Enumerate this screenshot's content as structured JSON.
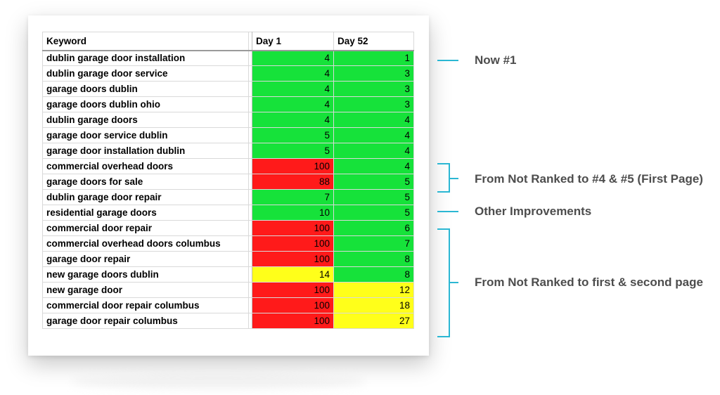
{
  "table": {
    "headers": [
      "Keyword",
      "Day 1",
      "Day 52"
    ],
    "rows": [
      {
        "keyword": "dublin garage door installation",
        "day1": "4",
        "day52": "1",
        "c1": "green",
        "c2": "green"
      },
      {
        "keyword": "dublin garage door service",
        "day1": "4",
        "day52": "3",
        "c1": "green",
        "c2": "green"
      },
      {
        "keyword": "garage doors dublin",
        "day1": "4",
        "day52": "3",
        "c1": "green",
        "c2": "green"
      },
      {
        "keyword": "garage doors dublin ohio",
        "day1": "4",
        "day52": "3",
        "c1": "green",
        "c2": "green"
      },
      {
        "keyword": "dublin garage doors",
        "day1": "4",
        "day52": "4",
        "c1": "green",
        "c2": "green"
      },
      {
        "keyword": "garage door service dublin",
        "day1": "5",
        "day52": "4",
        "c1": "green",
        "c2": "green"
      },
      {
        "keyword": "garage door installation  dublin",
        "day1": "5",
        "day52": "4",
        "c1": "green",
        "c2": "green"
      },
      {
        "keyword": "commercial overhead doors",
        "day1": "100",
        "day52": "4",
        "c1": "red",
        "c2": "green"
      },
      {
        "keyword": "garage doors for sale",
        "day1": "88",
        "day52": "5",
        "c1": "red",
        "c2": "green"
      },
      {
        "keyword": "dublin garage door repair",
        "day1": "7",
        "day52": "5",
        "c1": "green",
        "c2": "green"
      },
      {
        "keyword": "residential garage doors",
        "day1": "10",
        "day52": "5",
        "c1": "green",
        "c2": "green"
      },
      {
        "keyword": "commercial door repair",
        "day1": "100",
        "day52": "6",
        "c1": "red",
        "c2": "green"
      },
      {
        "keyword": "commercial overhead doors columbus",
        "day1": "100",
        "day52": "7",
        "c1": "red",
        "c2": "green"
      },
      {
        "keyword": "garage door repair",
        "day1": "100",
        "day52": "8",
        "c1": "red",
        "c2": "green"
      },
      {
        "keyword": "new garage doors dublin",
        "day1": "14",
        "day52": "8",
        "c1": "yellow",
        "c2": "green"
      },
      {
        "keyword": "new garage door",
        "day1": "100",
        "day52": "12",
        "c1": "red",
        "c2": "yellow"
      },
      {
        "keyword": "commercial door repair columbus",
        "day1": "100",
        "day52": "18",
        "c1": "red",
        "c2": "yellow"
      },
      {
        "keyword": "garage door repair columbus",
        "day1": "100",
        "day52": "27",
        "c1": "red",
        "c2": "yellow"
      }
    ]
  },
  "annotations": {
    "now_first": "Now #1",
    "not_ranked_first_page": "From Not Ranked to #4 & #5 (First Page)",
    "other": "Other Improvements",
    "not_ranked_first_second": "From Not Ranked to first & second page"
  },
  "colors": {
    "green": "#16e23a",
    "red": "#ff1a1a",
    "yellow": "#ffff1a",
    "accent": "#2bb7d3",
    "annotation_text": "#4d4d4d"
  }
}
